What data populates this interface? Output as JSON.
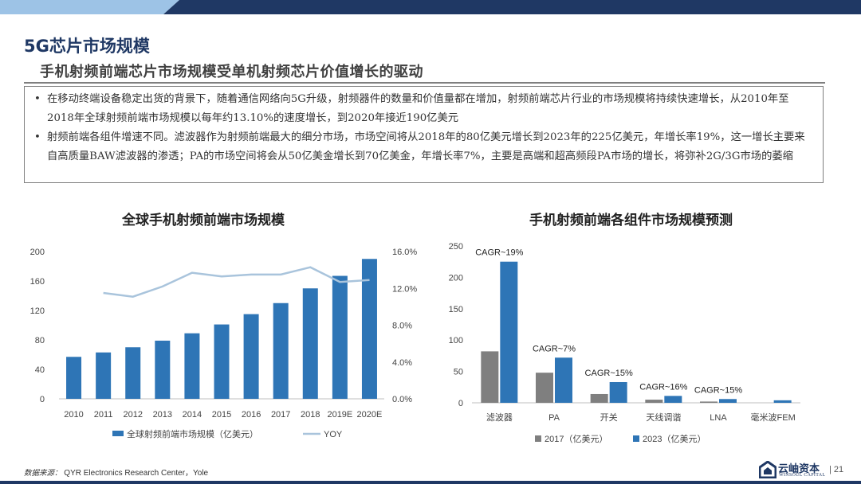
{
  "colors": {
    "navy": "#1f3864",
    "blue": "#2e75b6",
    "lightblue": "#9dc3e6",
    "gray": "#7f7f7f",
    "line": "#a9c4dc"
  },
  "page": {
    "title": "5G芯片市场规模",
    "subtitle": "手机射频前端芯片市场规模受单机射频芯片价值增长的驱动",
    "bullets": [
      {
        "mark": "•",
        "text": "在移动终端设备稳定出货的背景下，随着通信网络向5G升级，射频器件的数量和价值量都在增加，射频前端芯片行业的市场规模将持续快速增长，从2010年至2018年全球射频前端市场规模以每年约13.10%的速度增长，到2020年接近190亿美元"
      },
      {
        "mark": "•",
        "text": "射频前端各组件增速不同。滤波器作为射频前端最大的细分市场，市场空间将从2018年的80亿美元增长到2023年的225亿美元，年增长率19%，这一增长主要来自高质量BAW滤波器的渗透；PA的市场空间将会从50亿美金增长到70亿美金，年增长率7%，主要是高端和超高频段PA市场的增长，将弥补2G/3G市场的萎缩"
      }
    ],
    "source_label": "数据来源：",
    "source_text": "QYR Electronics Research Center，Yole",
    "logo_cn": "云岫资本",
    "logo_en": "WINSOUL CAPITAL",
    "page_number": "| 21"
  },
  "chart_data": [
    {
      "type": "bar",
      "title": "全球手机射频前端市场规模",
      "categories": [
        "2010",
        "2011",
        "2012",
        "2013",
        "2014",
        "2015",
        "2016",
        "2017",
        "2018",
        "2019E",
        "2020E"
      ],
      "series": [
        {
          "name": "全球射频前端市场规模（亿美元）",
          "type": "bar",
          "axis": "left",
          "color": "#2e75b6",
          "values": [
            57,
            63,
            70,
            79,
            89,
            101,
            115,
            130,
            150,
            167,
            190
          ]
        },
        {
          "name": "YOY",
          "type": "line",
          "axis": "right",
          "color": "#a9c4dc",
          "values": [
            null,
            11.5,
            11.1,
            12.2,
            13.7,
            13.3,
            13.5,
            13.5,
            14.3,
            12.7,
            12.9
          ]
        }
      ],
      "ylim": [
        0,
        200
      ],
      "yticks": [
        "0",
        "40",
        "80",
        "120",
        "160",
        "200"
      ],
      "y2lim": [
        0,
        16
      ],
      "y2ticks": [
        "0.0%",
        "4.0%",
        "8.0%",
        "12.0%",
        "16.0%"
      ],
      "legend_position": "bottom"
    },
    {
      "type": "bar",
      "title": "手机射频前端各组件市场规模预测",
      "categories": [
        "滤波器",
        "PA",
        "开关",
        "天线调谐",
        "LNA",
        "毫米波FEM"
      ],
      "series": [
        {
          "name": "2017（亿美元）",
          "color": "#7f7f7f",
          "values": [
            82,
            48,
            14,
            5,
            2,
            0
          ]
        },
        {
          "name": "2023（亿美元）",
          "color": "#2e75b6",
          "values": [
            225,
            72,
            33,
            11,
            6,
            4
          ]
        }
      ],
      "annotations": [
        "CAGR~19%",
        "CAGR~7%",
        "CAGR~15%",
        "CAGR~16%",
        "CAGR~15%"
      ],
      "ylim": [
        0,
        250
      ],
      "yticks": [
        "0",
        "50",
        "100",
        "150",
        "200",
        "250"
      ],
      "legend_position": "bottom"
    }
  ]
}
